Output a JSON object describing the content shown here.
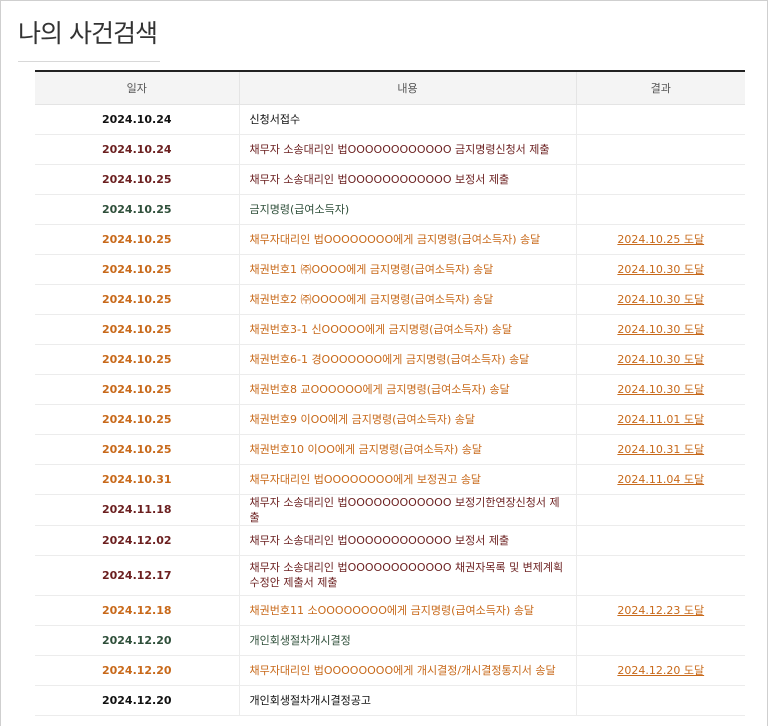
{
  "page": {
    "title": "나의 사건검색"
  },
  "colors": {
    "black": "#111111",
    "maroon": "#6b1f1f",
    "green": "#2f4f3a",
    "orange": "#c8691a"
  },
  "table": {
    "headers": {
      "date": "일자",
      "content": "내용",
      "result": "결과"
    },
    "rows": [
      {
        "date": "2024.10.24",
        "content": "신청서접수",
        "result": "",
        "color": "black"
      },
      {
        "date": "2024.10.24",
        "content": "채무자 소송대리인 법OOOOOOOOOOOO 금지명령신청서 제출",
        "result": "",
        "color": "maroon"
      },
      {
        "date": "2024.10.25",
        "content": "채무자 소송대리인 법OOOOOOOOOOOO 보정서 제출",
        "result": "",
        "color": "maroon"
      },
      {
        "date": "2024.10.25",
        "content": "금지명령(급여소득자)",
        "result": "",
        "color": "green"
      },
      {
        "date": "2024.10.25",
        "content": "채무자대리인 법OOOOOOOO에게 금지명령(급여소득자) 송달",
        "result": "2024.10.25 도달",
        "color": "orange"
      },
      {
        "date": "2024.10.25",
        "content": "채권번호1 ㈜OOOO에게 금지명령(급여소득자) 송달",
        "result": "2024.10.30 도달",
        "color": "orange"
      },
      {
        "date": "2024.10.25",
        "content": "채권번호2 ㈜OOOO에게 금지명령(급여소득자) 송달",
        "result": "2024.10.30 도달",
        "color": "orange"
      },
      {
        "date": "2024.10.25",
        "content": "채권번호3-1 신OOOOO에게 금지명령(급여소득자) 송달",
        "result": "2024.10.30 도달",
        "color": "orange"
      },
      {
        "date": "2024.10.25",
        "content": "채권번호6-1 경OOOOOOO에게 금지명령(급여소득자) 송달",
        "result": "2024.10.30 도달",
        "color": "orange"
      },
      {
        "date": "2024.10.25",
        "content": "채권번호8 교OOOOOO에게 금지명령(급여소득자) 송달",
        "result": "2024.10.30 도달",
        "color": "orange"
      },
      {
        "date": "2024.10.25",
        "content": "채권번호9 이OO에게 금지명령(급여소득자) 송달",
        "result": "2024.11.01 도달",
        "color": "orange"
      },
      {
        "date": "2024.10.25",
        "content": "채권번호10 이OO에게 금지명령(급여소득자) 송달",
        "result": "2024.10.31 도달",
        "color": "orange"
      },
      {
        "date": "2024.10.31",
        "content": "채무자대리인 법OOOOOOOO에게 보정권고 송달",
        "result": "2024.11.04 도달",
        "color": "orange"
      },
      {
        "date": "2024.11.18",
        "content": "채무자 소송대리인 법OOOOOOOOOOOO 보정기한연장신청서 제출",
        "result": "",
        "color": "maroon"
      },
      {
        "date": "2024.12.02",
        "content": "채무자 소송대리인 법OOOOOOOOOOOO 보정서 제출",
        "result": "",
        "color": "maroon"
      },
      {
        "date": "2024.12.17",
        "content": "채무자 소송대리인 법OOOOOOOOOOOO 채권자목록 및 변제계획 수정안 제출서 제출",
        "result": "",
        "color": "maroon",
        "tall": true
      },
      {
        "date": "2024.12.18",
        "content": "채권번호11 소OOOOOOOO에게 금지명령(급여소득자) 송달",
        "result": "2024.12.23 도달",
        "color": "orange"
      },
      {
        "date": "2024.12.20",
        "content": "개인회생절차개시결정",
        "result": "",
        "color": "green"
      },
      {
        "date": "2024.12.20",
        "content": "채무자대리인 법OOOOOOOO에게 개시결정/개시결정통지서 송달",
        "result": "2024.12.20 도달",
        "color": "orange"
      },
      {
        "date": "2024.12.20",
        "content": "개인회생절차개시결정공고",
        "result": "",
        "color": "black"
      }
    ]
  }
}
